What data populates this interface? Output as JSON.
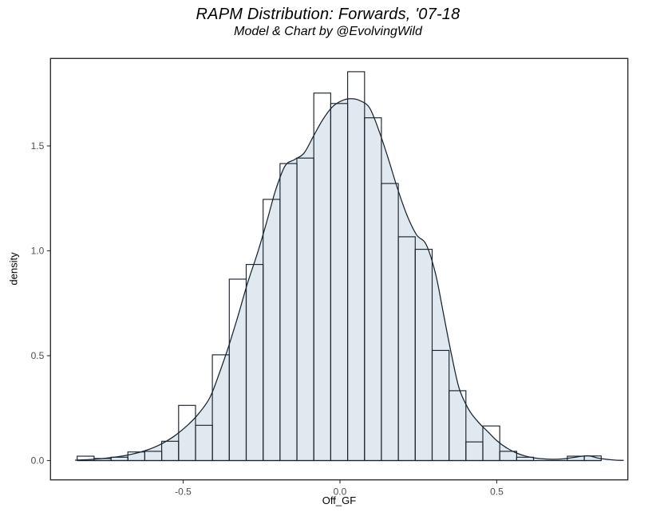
{
  "chart_data": {
    "type": "histogram",
    "title": "RAPM Distribution: Forwards, '07-18",
    "subtitle": "Model & Chart by @EvolvingWild",
    "xlabel": "Off_GF",
    "ylabel": "density",
    "grid": "off",
    "legend": "none",
    "x_domain": [
      -0.923,
      0.918
    ],
    "y_domain": [
      -0.092,
      1.917
    ],
    "x_ticks": [
      {
        "value": -0.5,
        "label": "-0.5"
      },
      {
        "value": 0.0,
        "label": "0.0"
      },
      {
        "value": 0.5,
        "label": "0.5"
      }
    ],
    "y_ticks": [
      {
        "value": 0.0,
        "label": "0.0"
      },
      {
        "value": 0.5,
        "label": "0.5"
      },
      {
        "value": 1.0,
        "label": "1.0"
      },
      {
        "value": 1.5,
        "label": "1.5"
      }
    ],
    "histogram": {
      "bin_start": -0.838,
      "bin_width": 0.0539,
      "densities": [
        0.021,
        0.01,
        0.016,
        0.041,
        0.044,
        0.092,
        0.263,
        0.168,
        0.504,
        0.865,
        0.935,
        1.245,
        1.416,
        1.442,
        1.752,
        1.702,
        1.854,
        1.634,
        1.321,
        1.067,
        1.007,
        0.525,
        0.333,
        0.089,
        0.165,
        0.044,
        0.016,
        0.0,
        0.0,
        0.021,
        0.022
      ]
    },
    "density_curve": [
      [
        -0.845,
        0.002
      ],
      [
        -0.8,
        0.005
      ],
      [
        -0.755,
        0.01
      ],
      [
        -0.71,
        0.018
      ],
      [
        -0.665,
        0.03
      ],
      [
        -0.62,
        0.048
      ],
      [
        -0.575,
        0.075
      ],
      [
        -0.53,
        0.115
      ],
      [
        -0.485,
        0.17
      ],
      [
        -0.45,
        0.225
      ],
      [
        -0.415,
        0.3
      ],
      [
        -0.385,
        0.415
      ],
      [
        -0.355,
        0.545
      ],
      [
        -0.325,
        0.69
      ],
      [
        -0.295,
        0.845
      ],
      [
        -0.265,
        0.98
      ],
      [
        -0.235,
        1.13
      ],
      [
        -0.205,
        1.29
      ],
      [
        -0.175,
        1.405
      ],
      [
        -0.145,
        1.435
      ],
      [
        -0.115,
        1.465
      ],
      [
        -0.085,
        1.545
      ],
      [
        -0.055,
        1.625
      ],
      [
        -0.025,
        1.685
      ],
      [
        0.005,
        1.715
      ],
      [
        0.035,
        1.725
      ],
      [
        0.065,
        1.715
      ],
      [
        0.095,
        1.68
      ],
      [
        0.125,
        1.57
      ],
      [
        0.155,
        1.435
      ],
      [
        0.185,
        1.29
      ],
      [
        0.215,
        1.165
      ],
      [
        0.245,
        1.075
      ],
      [
        0.275,
        1.03
      ],
      [
        0.305,
        0.89
      ],
      [
        0.33,
        0.7
      ],
      [
        0.355,
        0.51
      ],
      [
        0.38,
        0.345
      ],
      [
        0.41,
        0.245
      ],
      [
        0.44,
        0.185
      ],
      [
        0.47,
        0.14
      ],
      [
        0.5,
        0.095
      ],
      [
        0.53,
        0.062
      ],
      [
        0.56,
        0.038
      ],
      [
        0.59,
        0.022
      ],
      [
        0.62,
        0.013
      ],
      [
        0.65,
        0.008
      ],
      [
        0.68,
        0.006
      ],
      [
        0.71,
        0.008
      ],
      [
        0.745,
        0.015
      ],
      [
        0.79,
        0.023
      ],
      [
        0.82,
        0.013
      ],
      [
        0.85,
        0.006
      ],
      [
        0.88,
        0.002
      ],
      [
        0.905,
        0.001
      ]
    ],
    "colors": {
      "area_fill": "#e1e9f0",
      "curve_line": "#1a242e",
      "bar_stroke": "#1a242e",
      "bar_fill": "transparent",
      "panel_border": "#2f2f2f",
      "panel_background": "#ffffff",
      "tick_mark": "#333333",
      "tick_label": "#4d4d4d",
      "axis_title": "#000000",
      "title": "#000000"
    }
  }
}
